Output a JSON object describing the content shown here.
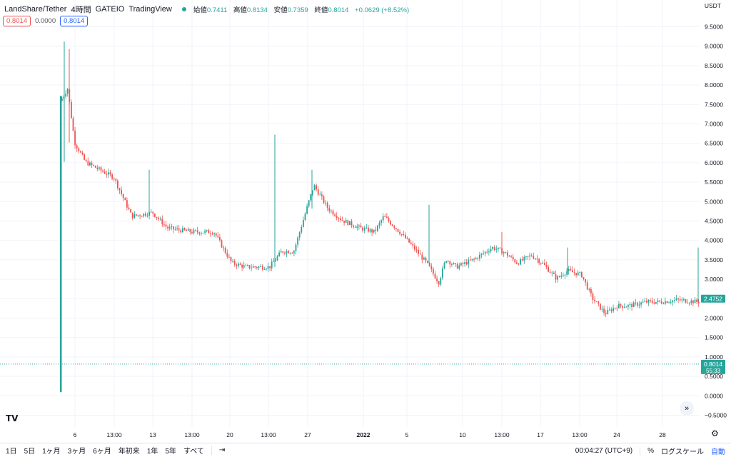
{
  "legend": {
    "symbol": "LandShare/Tether",
    "interval": "4時間",
    "exchange": "GATEIO",
    "source": "TradingView",
    "open_label": "始値",
    "open": "0.7411",
    "high_label": "高値",
    "high": "0.8134",
    "low_label": "安値",
    "low": "0.7359",
    "close_label": "終値",
    "close": "0.8014",
    "change": "+0.0629 (+8.52%)"
  },
  "price_boxes": {
    "sell": "0.8014",
    "spread": "0.0000",
    "buy": "0.8014"
  },
  "currency": "USDT",
  "price_axis_labels": [
    "9.5000",
    "9.0000",
    "8.5000",
    "8.0000",
    "7.5000",
    "7.0000",
    "6.5000",
    "6.0000",
    "5.5000",
    "5.0000",
    "4.5000",
    "4.0000",
    "3.5000",
    "3.0000",
    "2.5000",
    "2.0000",
    "1.5000",
    "1.0000",
    "0.5000",
    "0.0000",
    "−0.5000"
  ],
  "price_tags": {
    "mark": "2.4752",
    "last": "0.8014",
    "countdown": "55:33"
  },
  "time_axis_labels": [
    "6",
    "13:00",
    "13",
    "13:00",
    "20",
    "13:00",
    "27",
    "2022",
    "5",
    "10",
    "13:00",
    "17",
    "13:00",
    "24",
    "28"
  ],
  "bottom_bar": {
    "ranges": [
      "1日",
      "5日",
      "1ヶ月",
      "3ヶ月",
      "6ヶ月",
      "年初来",
      "1年",
      "5年",
      "すべて"
    ],
    "time": "00:04:27 (UTC+9)",
    "percent": "%",
    "log_scale": "ログスケール",
    "auto": "自動"
  },
  "colors": {
    "up": "#26a69a",
    "down": "#ef5350",
    "grid": "#f0f3fa",
    "text": "#131722"
  },
  "icons": {
    "logo": "tradingview-logo-icon",
    "scroll": "scroll-to-realtime-icon",
    "settings": "gear-icon",
    "compare": "calendar-goto-icon"
  }
}
